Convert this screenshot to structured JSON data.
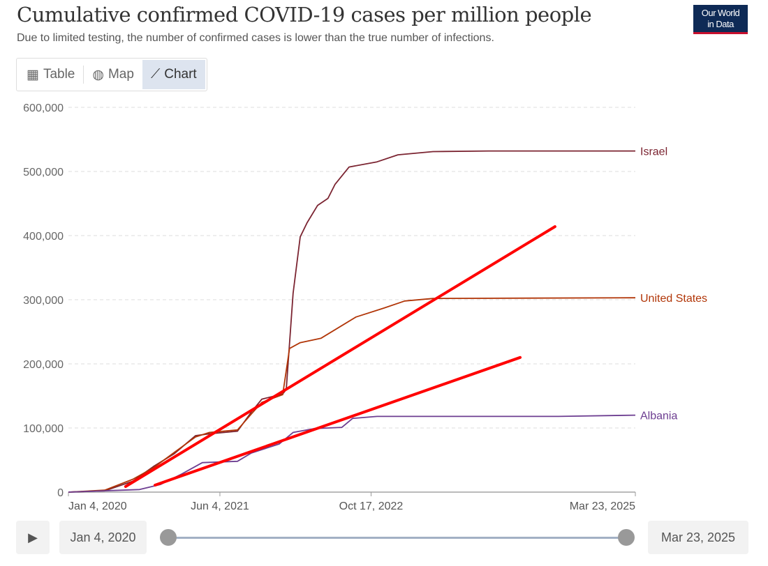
{
  "header": {
    "title": "Cumulative confirmed COVID-19 cases per million people",
    "subtitle": "Due to limited testing, the number of confirmed cases is lower than the true number of infections.",
    "logo": "Our World in Data"
  },
  "tabs": [
    {
      "label": "Table",
      "icon": "table-icon"
    },
    {
      "label": "Map",
      "icon": "globe-icon"
    },
    {
      "label": "Chart",
      "icon": "line-chart-icon",
      "active": true
    }
  ],
  "timeline": {
    "start": "Jan 4, 2020",
    "end": "Mar 23, 2025",
    "play_icon": "play-icon"
  },
  "chart_data": {
    "type": "line",
    "title": "Cumulative confirmed COVID-19 cases per million people",
    "x_unit": "days since Jan 4, 2020",
    "xlim": [
      0,
      1905
    ],
    "ylim": [
      0,
      600000
    ],
    "grid": true,
    "x_ticks": [
      {
        "value": 0,
        "label": "Jan 4, 2020"
      },
      {
        "value": 509,
        "label": "Jun 4, 2021"
      },
      {
        "value": 1017,
        "label": "Oct 17, 2022"
      },
      {
        "value": 1905,
        "label": "Mar 23, 2025"
      }
    ],
    "y_ticks": [
      {
        "value": 0,
        "label": "0"
      },
      {
        "value": 100000,
        "label": "100,000"
      },
      {
        "value": 200000,
        "label": "200,000"
      },
      {
        "value": 300000,
        "label": "300,000"
      },
      {
        "value": 400000,
        "label": "400,000"
      },
      {
        "value": 500000,
        "label": "500,000"
      },
      {
        "value": 600000,
        "label": "600,000"
      }
    ],
    "series": [
      {
        "name": "Israel",
        "color": "#7b2431",
        "points": [
          [
            0,
            0
          ],
          [
            122,
            2000
          ],
          [
            216,
            17000
          ],
          [
            286,
            40000
          ],
          [
            356,
            60000
          ],
          [
            427,
            88000
          ],
          [
            474,
            91000
          ],
          [
            568,
            95000
          ],
          [
            615,
            125000
          ],
          [
            650,
            145000
          ],
          [
            720,
            153000
          ],
          [
            732,
            160000
          ],
          [
            755,
            310000
          ],
          [
            779,
            398000
          ],
          [
            802,
            420000
          ],
          [
            837,
            447000
          ],
          [
            872,
            458000
          ],
          [
            896,
            480000
          ],
          [
            943,
            507000
          ],
          [
            1037,
            515000
          ],
          [
            1107,
            526000
          ],
          [
            1225,
            531000
          ],
          [
            1412,
            532000
          ],
          [
            1905,
            532000
          ]
        ]
      },
      {
        "name": "United States",
        "color": "#b13507",
        "points": [
          [
            0,
            0
          ],
          [
            122,
            3000
          ],
          [
            216,
            20000
          ],
          [
            286,
            38000
          ],
          [
            356,
            62000
          ],
          [
            427,
            86000
          ],
          [
            474,
            93000
          ],
          [
            568,
            97000
          ],
          [
            615,
            122000
          ],
          [
            650,
            140000
          ],
          [
            720,
            152000
          ],
          [
            743,
            224000
          ],
          [
            779,
            233000
          ],
          [
            849,
            240000
          ],
          [
            966,
            273000
          ],
          [
            1060,
            287000
          ],
          [
            1130,
            298000
          ],
          [
            1225,
            302000
          ],
          [
            1905,
            303000
          ]
        ]
      },
      {
        "name": "Albania",
        "color": "#6d3e91",
        "points": [
          [
            0,
            0
          ],
          [
            239,
            4000
          ],
          [
            310,
            12000
          ],
          [
            380,
            28000
          ],
          [
            450,
            46000
          ],
          [
            568,
            48000
          ],
          [
            615,
            61000
          ],
          [
            708,
            75000
          ],
          [
            755,
            93000
          ],
          [
            826,
            99000
          ],
          [
            919,
            101000
          ],
          [
            955,
            115000
          ],
          [
            1037,
            118000
          ],
          [
            1647,
            118000
          ],
          [
            1905,
            120000
          ]
        ]
      }
    ],
    "annotations": [
      {
        "type": "line",
        "color": "#ff0000",
        "from": [
          192,
          8700
        ],
        "to": [
          1635,
          414000
        ]
      },
      {
        "type": "line",
        "color": "#ff0000",
        "from": [
          291,
          10900
        ],
        "to": [
          1518,
          210000
        ]
      }
    ]
  }
}
